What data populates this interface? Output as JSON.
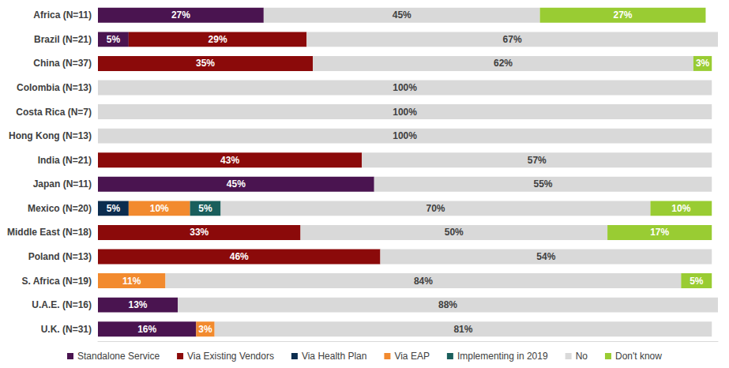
{
  "chart_data": {
    "type": "bar",
    "orientation": "horizontal",
    "stacked": true,
    "data_labels": true,
    "tick_labels": "y",
    "grid": false,
    "legend": "bottom",
    "xlim": [
      0,
      101
    ],
    "categories": [
      "Africa (N=11)",
      "Brazil (N=21)",
      "China (N=37)",
      "Colombia (N=13)",
      "Costa Rica (N=7)",
      "Hong Kong (N=13)",
      "India (N=21)",
      "Japan (N=11)",
      "Mexico (N=20)",
      "Middle East (N=18)",
      "Poland (N=13)",
      "S. Africa (N=19)",
      "U.A.E. (N=16)",
      "U.K. (N=31)"
    ],
    "series": [
      {
        "name": "Standalone Service",
        "color": "#4a1450",
        "values": [
          27,
          5,
          null,
          null,
          null,
          null,
          null,
          45,
          null,
          null,
          null,
          null,
          13,
          16
        ],
        "value_labels": [
          "27%",
          "5%",
          null,
          null,
          null,
          null,
          null,
          "45%",
          null,
          null,
          null,
          null,
          "13%",
          "16%"
        ]
      },
      {
        "name": "Via Existing Vendors",
        "color": "#8b0a0a",
        "values": [
          null,
          29,
          35,
          null,
          null,
          null,
          43,
          null,
          null,
          33,
          46,
          null,
          null,
          null
        ],
        "value_labels": [
          null,
          "29%",
          "35%",
          null,
          null,
          null,
          "43%",
          null,
          null,
          "33%",
          "46%",
          null,
          null,
          null
        ]
      },
      {
        "name": "Via Health Plan",
        "color": "#0c2d4f",
        "values": [
          null,
          null,
          null,
          null,
          null,
          null,
          null,
          null,
          5,
          null,
          null,
          null,
          null,
          null
        ],
        "value_labels": [
          null,
          null,
          null,
          null,
          null,
          null,
          null,
          null,
          "5%",
          null,
          null,
          null,
          null,
          null
        ]
      },
      {
        "name": "Via EAP",
        "color": "#f28a2e",
        "values": [
          null,
          null,
          null,
          null,
          null,
          null,
          null,
          null,
          10,
          null,
          null,
          11,
          null,
          3
        ],
        "value_labels": [
          null,
          null,
          null,
          null,
          null,
          null,
          null,
          null,
          "10%",
          null,
          null,
          "11%",
          null,
          "3%"
        ]
      },
      {
        "name": "Implementing in 2019",
        "color": "#1a5f5c",
        "values": [
          null,
          null,
          null,
          null,
          null,
          null,
          null,
          null,
          5,
          null,
          null,
          null,
          null,
          null
        ],
        "value_labels": [
          null,
          null,
          null,
          null,
          null,
          null,
          null,
          null,
          "5%",
          null,
          null,
          null,
          null,
          null
        ]
      },
      {
        "name": "No",
        "color": "#d9d9d9",
        "values": [
          45,
          67,
          62,
          100,
          100,
          100,
          57,
          55,
          70,
          50,
          54,
          84,
          88,
          81
        ],
        "value_labels": [
          "45%",
          "67%",
          "62%",
          "100%",
          "100%",
          "100%",
          "57%",
          "55%",
          "70%",
          "50%",
          "54%",
          "84%",
          "88%",
          "81%"
        ]
      },
      {
        "name": "Don't know",
        "color": "#99cc33",
        "values": [
          27,
          null,
          3,
          null,
          null,
          null,
          null,
          null,
          10,
          17,
          null,
          5,
          null,
          null
        ],
        "value_labels": [
          "27%",
          null,
          "3%",
          null,
          null,
          null,
          null,
          null,
          "10%",
          "17%",
          null,
          "5%",
          null,
          null
        ]
      }
    ]
  }
}
